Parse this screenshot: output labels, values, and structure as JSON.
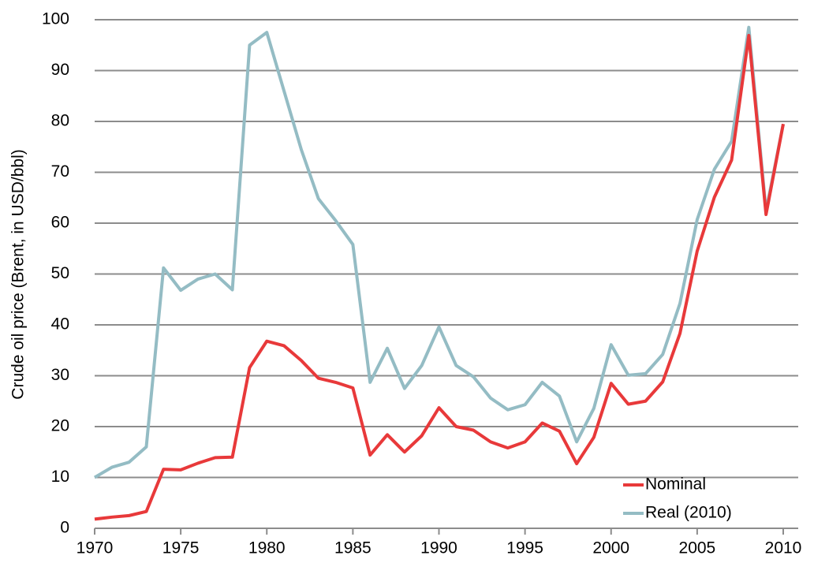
{
  "chart_data": {
    "type": "line",
    "y_label": "Crude oil price (Brent, in USD/bbl)",
    "x": [
      1970,
      1971,
      1972,
      1973,
      1974,
      1975,
      1976,
      1977,
      1978,
      1979,
      1980,
      1981,
      1982,
      1983,
      1984,
      1985,
      1986,
      1987,
      1988,
      1989,
      1990,
      1991,
      1992,
      1993,
      1994,
      1995,
      1996,
      1997,
      1998,
      1999,
      2000,
      2001,
      2002,
      2003,
      2004,
      2005,
      2006,
      2007,
      2008,
      2009,
      2010
    ],
    "series": [
      {
        "name": "Nominal",
        "color": "#e8393a",
        "values": [
          1.8,
          2.2,
          2.5,
          3.3,
          11.6,
          11.5,
          12.8,
          13.9,
          14.0,
          31.6,
          36.8,
          35.9,
          33.0,
          29.5,
          28.7,
          27.6,
          14.4,
          18.4,
          15.0,
          18.2,
          23.7,
          20.0,
          19.3,
          17.0,
          15.8,
          17.0,
          20.7,
          19.1,
          12.7,
          17.9,
          28.5,
          24.4,
          25.0,
          28.8,
          38.3,
          54.5,
          65.1,
          72.4,
          96.9,
          61.7,
          79.5
        ]
      },
      {
        "name": "Real (2010)",
        "color": "#94bcc4",
        "values": [
          10,
          12,
          13,
          16,
          51.2,
          46.8,
          49,
          50,
          46.9,
          95,
          97.5,
          86,
          74.5,
          64.8,
          60.5,
          55.8,
          28.7,
          35.4,
          27.5,
          32,
          39.6,
          32,
          29.8,
          25.6,
          23.3,
          24.3,
          28.7,
          26,
          17,
          23.6,
          36.1,
          30.1,
          30.4,
          34.2,
          44.2,
          60.7,
          70.6,
          76.1,
          98.5,
          62.4,
          79.5
        ]
      }
    ],
    "xlim": [
      1970,
      2010
    ],
    "xticks": [
      1970,
      1975,
      1980,
      1985,
      1990,
      1995,
      2000,
      2005,
      2010
    ],
    "ylim": [
      0,
      100
    ],
    "yticks": [
      0,
      10,
      20,
      30,
      40,
      50,
      60,
      70,
      80,
      90,
      100
    ],
    "grid": true,
    "legend": "lower right"
  }
}
